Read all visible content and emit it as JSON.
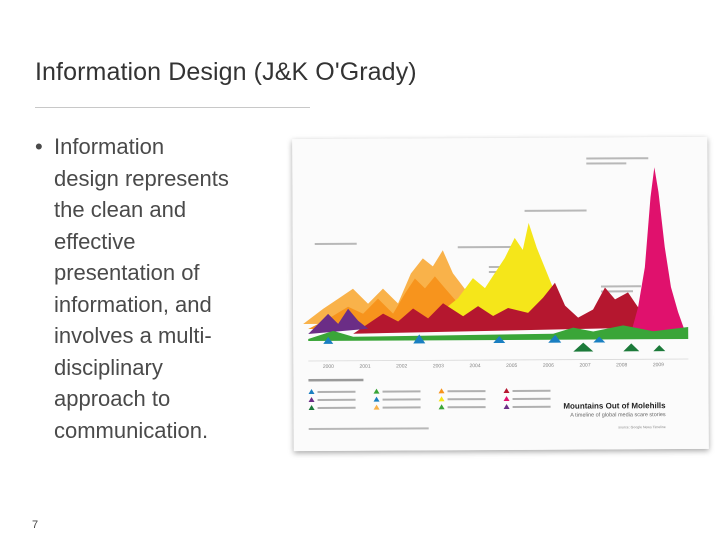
{
  "slide": {
    "title": "Information Design (J&K O'Grady)",
    "bullet": {
      "marker": "•",
      "lines": [
        "Information",
        "design represents",
        "the clean and",
        "effective",
        "presentation of",
        "information, and",
        "involves a multi-",
        "disciplinary",
        "approach to",
        "communication."
      ]
    },
    "page_number": "7"
  },
  "figure": {
    "title": "Mountains Out of Molehills",
    "subtitle": "A timeline of global media scare stories",
    "source": "source: Google News Timeline",
    "year_labels": [
      "2000",
      "2001",
      "2002",
      "2003",
      "2004",
      "2005",
      "2006",
      "2007",
      "2008",
      "2009"
    ],
    "colors": {
      "crimson": "#b5172f",
      "yellow": "#f5e61a",
      "orange": "#f7941d",
      "light_orange": "#f9b24a",
      "magenta": "#e0116d",
      "purple": "#6b2d86",
      "green": "#3aa538",
      "blue": "#1a7fc1",
      "dark_green": "#1c7a3a"
    }
  }
}
